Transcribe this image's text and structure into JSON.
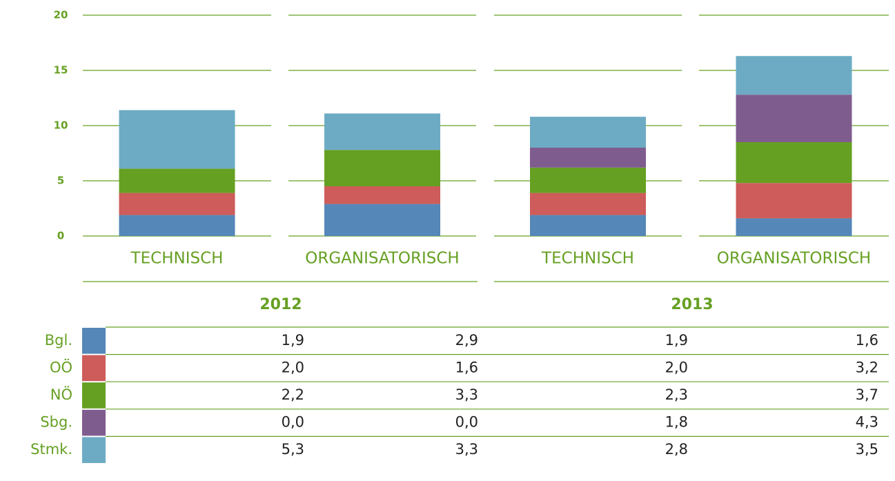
{
  "chart_data": {
    "type": "stacked_bar",
    "categories": [
      "TECHNISCH",
      "ORGANISATORISCH",
      "TECHNISCH",
      "ORGANISATORISCH"
    ],
    "groups": [
      "2012",
      "2013"
    ],
    "series": [
      {
        "name": "Bgl.",
        "color": "#5587b8",
        "values": [
          1.9,
          2.9,
          1.9,
          1.6
        ],
        "value_labels": [
          "1,9",
          "2,9",
          "1,9",
          "1,6"
        ]
      },
      {
        "name": "OÖ",
        "color": "#cd5c5a",
        "values": [
          2.0,
          1.6,
          2.0,
          3.2
        ],
        "value_labels": [
          "2,0",
          "1,6",
          "2,0",
          "3,2"
        ]
      },
      {
        "name": "NÖ",
        "color": "#66a023",
        "values": [
          2.2,
          3.3,
          2.3,
          3.7
        ],
        "value_labels": [
          "2,2",
          "3,3",
          "2,3",
          "3,7"
        ]
      },
      {
        "name": "Sbg.",
        "color": "#7f5c8e",
        "values": [
          0.0,
          0.0,
          1.8,
          4.3
        ],
        "value_labels": [
          "0,0",
          "0,0",
          "1,8",
          "4,3"
        ]
      },
      {
        "name": "Stmk.",
        "color": "#6dabc4",
        "values": [
          5.3,
          3.3,
          2.8,
          3.5
        ],
        "value_labels": [
          "5,3",
          "3,3",
          "2,8",
          "3,5"
        ]
      }
    ],
    "ylim": [
      0,
      20
    ],
    "yticks": [
      0,
      5,
      10,
      15,
      20
    ],
    "grid": true
  }
}
